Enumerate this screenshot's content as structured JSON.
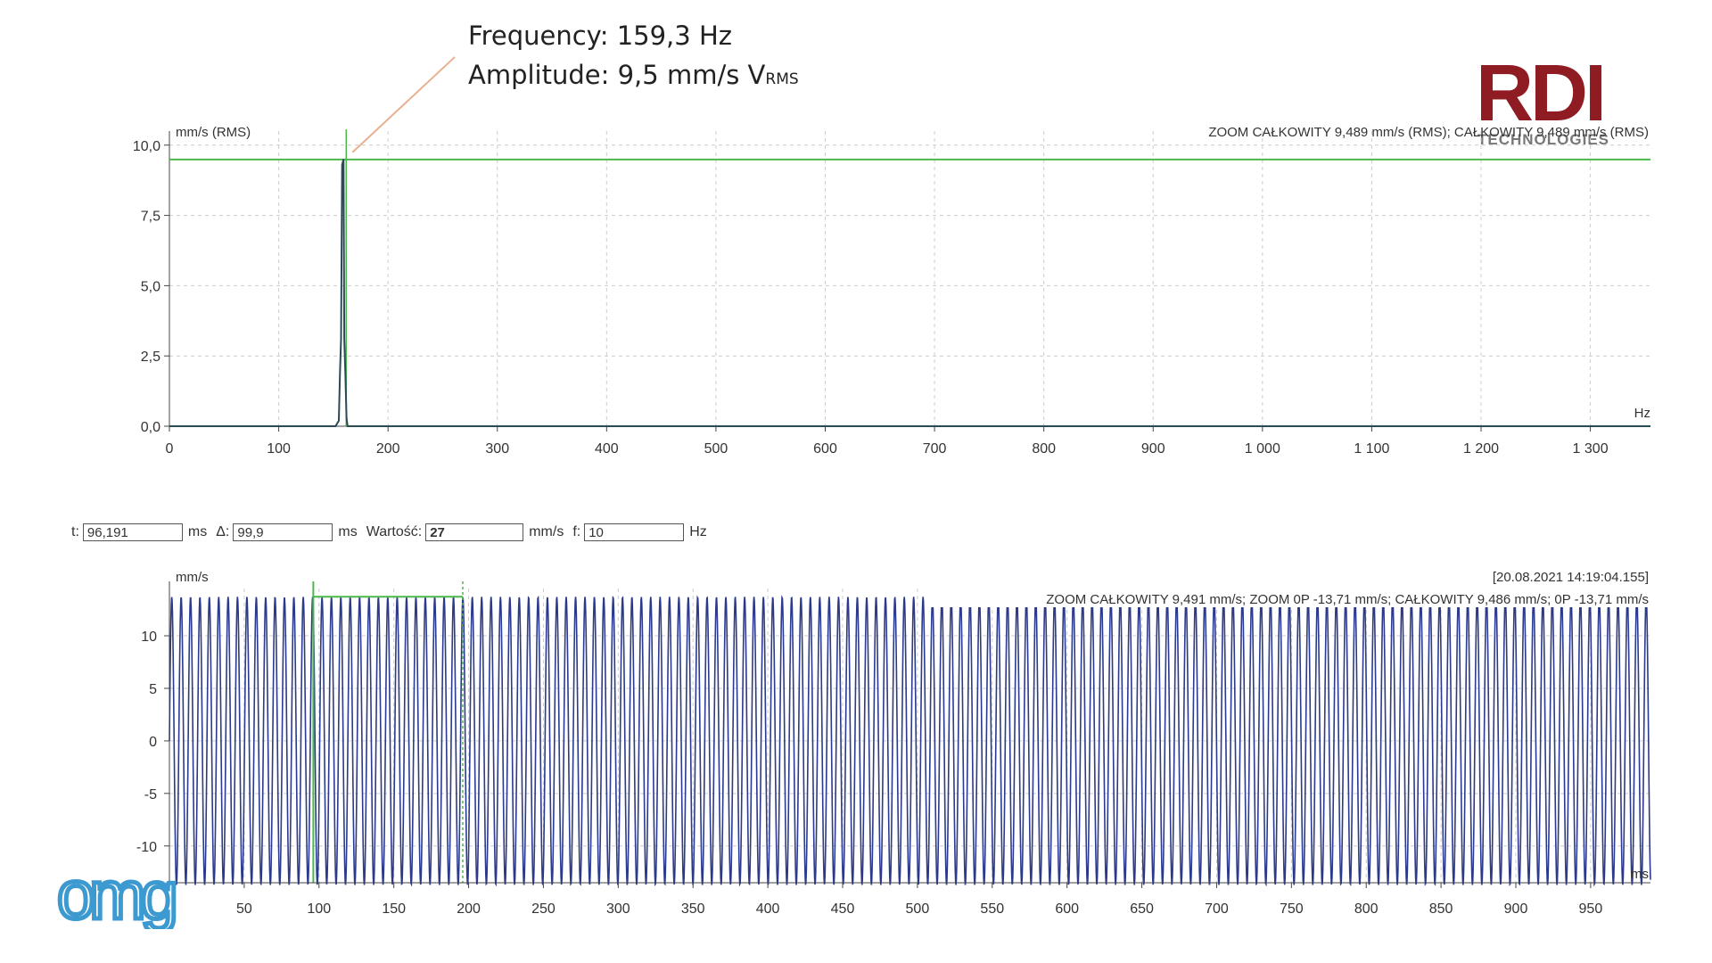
{
  "annotation": {
    "freq_label": "Frequency:",
    "freq_value": "159,3 Hz",
    "amp_label": "Amplitude:",
    "amp_value": "9,5 mm/s V",
    "amp_sub": "RMS"
  },
  "logo": {
    "main": "RDI",
    "sub": "TECHNOLOGIES",
    "watermark": "omg"
  },
  "controls": {
    "t_label": "t:",
    "t_value": "96,191",
    "t_unit": "ms",
    "delta_label": "Δ:",
    "delta_value": "99,9",
    "delta_unit": "ms",
    "value_label": "Wartość:",
    "value_value": "27",
    "value_unit": "mm/s",
    "f_label": "f:",
    "f_value": "10",
    "f_unit": "Hz"
  },
  "colors": {
    "spectrum": "#2a4a58",
    "waveform": "#2c3a8c",
    "cursor": "#4cb84c",
    "grid": "#cccccc",
    "brand": "#8e1c22"
  },
  "chart_data": [
    {
      "type": "line",
      "title": "",
      "ylabel": "mm/s (RMS)",
      "xlabel": "Hz",
      "legend_text": "ZOOM CAŁKOWITY 9,489 mm/s (RMS); CAŁKOWITY 9,489 mm/s (RMS)",
      "xlim": [
        0,
        1355
      ],
      "ylim": [
        0,
        10.5
      ],
      "x_ticks": [
        0,
        100,
        200,
        300,
        400,
        500,
        600,
        700,
        800,
        900,
        1000,
        1100,
        1200,
        1300
      ],
      "x_tick_labels": [
        "0",
        "100",
        "200",
        "300",
        "400",
        "500",
        "600",
        "700",
        "800",
        "900",
        "1 000",
        "1 100",
        "1 200",
        "1 300"
      ],
      "y_ticks": [
        0,
        2.5,
        5,
        7.5,
        10
      ],
      "y_tick_labels": [
        "0,0",
        "2,5",
        "5,0",
        "7,5",
        "10,0"
      ],
      "series": [
        {
          "x": [
            0,
            152,
            155,
            156,
            157,
            158,
            159.3,
            160,
            161,
            162,
            163,
            1355
          ],
          "y": [
            0,
            0,
            0.2,
            1.8,
            3.1,
            9.3,
            9.5,
            3.1,
            1.8,
            0.3,
            0,
            0
          ]
        }
      ],
      "overall_line_y": 9.489,
      "cursor_x": 159.3,
      "grid": true
    },
    {
      "type": "line",
      "title": "",
      "ylabel": "mm/s",
      "xlabel": "ms",
      "timestamp": "[20.08.2021 14:19:04.155]",
      "legend_text": "ZOOM CAŁKOWITY 9,491 mm/s; ZOOM 0P -13,71 mm/s; CAŁKOWITY 9,486 mm/s; 0P -13,71 mm/s",
      "xlim": [
        0,
        990
      ],
      "ylim": [
        -13.5,
        14.5
      ],
      "x_ticks": [
        50,
        100,
        150,
        200,
        250,
        300,
        350,
        400,
        450,
        500,
        550,
        600,
        650,
        700,
        750,
        800,
        850,
        900,
        950
      ],
      "x_tick_labels": [
        "50",
        "100",
        "150",
        "200",
        "250",
        "300",
        "350",
        "400",
        "450",
        "500",
        "550",
        "600",
        "650",
        "700",
        "750",
        "800",
        "850",
        "900",
        "950"
      ],
      "y_ticks": [
        -10,
        -5,
        0,
        5,
        10
      ],
      "y_tick_labels": [
        "-10",
        "-5",
        "0",
        "5",
        "10"
      ],
      "signal": {
        "frequency_hz": 159.3,
        "amplitude": 13.71
      },
      "cursor_band": [
        96.191,
        196.091
      ],
      "grid": true
    }
  ]
}
